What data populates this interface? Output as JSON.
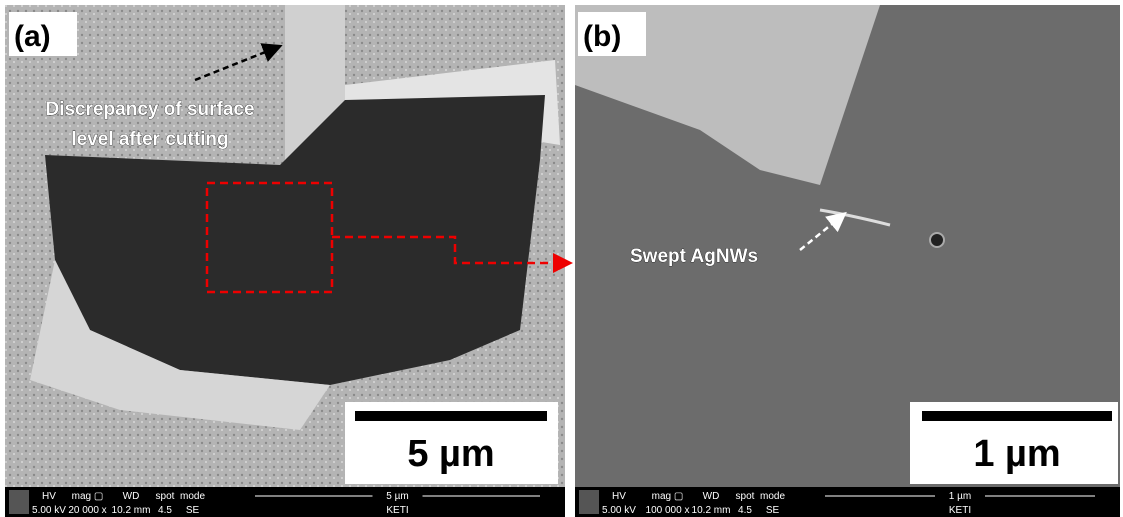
{
  "panels": [
    {
      "label": "(a)",
      "annotation": [
        "Discrepancy of surface",
        "level after cutting"
      ],
      "scale_bar": "5 µm",
      "info_bar": {
        "headers": [
          "HV",
          "mag ▢",
          "WD",
          "spot",
          "mode"
        ],
        "values": [
          "5.00 kV",
          "20 000 x",
          "10.2 mm",
          "4.5",
          "SE"
        ],
        "scale": "5 µm",
        "institution": "KETI"
      }
    },
    {
      "label": "(b)",
      "annotation": [
        "Swept AgNWs"
      ],
      "scale_bar": "1 µm",
      "info_bar": {
        "headers": [
          "HV",
          "mag ▢",
          "WD",
          "spot",
          "mode"
        ],
        "values": [
          "5.00 kV",
          "100 000 x",
          "10.2 mm",
          "4.5",
          "SE"
        ],
        "scale": "1 µm",
        "institution": "KETI"
      }
    }
  ]
}
